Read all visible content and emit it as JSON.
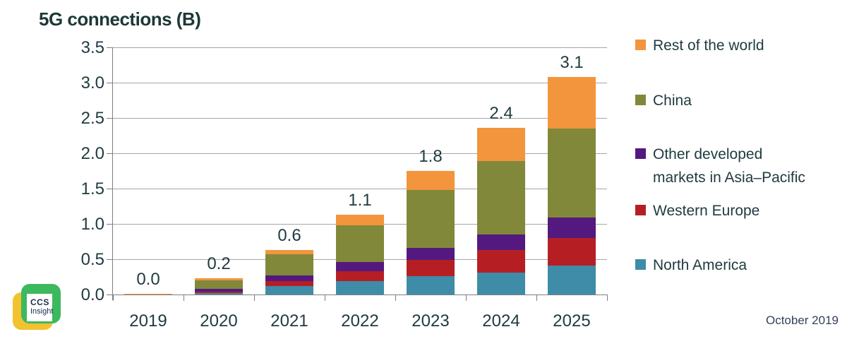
{
  "title": "5G connections (B)",
  "footer": {
    "date_note": "October 2019"
  },
  "logo": {
    "line1": "CCS",
    "line2": "Insight"
  },
  "chart_data": {
    "type": "bar",
    "subtype": "stacked",
    "title": "5G connections (B)",
    "categories": [
      "2019",
      "2020",
      "2021",
      "2022",
      "2023",
      "2024",
      "2025"
    ],
    "series": [
      {
        "name": "North America",
        "color": "#3e8ca8",
        "values": [
          0.0,
          0.02,
          0.12,
          0.19,
          0.26,
          0.31,
          0.41
        ]
      },
      {
        "name": "Western Europe",
        "color": "#b51f24",
        "values": [
          0.0,
          0.02,
          0.07,
          0.14,
          0.23,
          0.32,
          0.39
        ]
      },
      {
        "name": "Other developed markets in Asia–Pacific",
        "color": "#54197f",
        "values": [
          0.0,
          0.04,
          0.08,
          0.13,
          0.17,
          0.22,
          0.29
        ]
      },
      {
        "name": "China",
        "color": "#82883a",
        "values": [
          0.0,
          0.12,
          0.3,
          0.52,
          0.82,
          1.04,
          1.26
        ]
      },
      {
        "name": "Rest of the world",
        "color": "#f2953d",
        "values": [
          0.01,
          0.03,
          0.06,
          0.15,
          0.27,
          0.47,
          0.73
        ]
      }
    ],
    "total_labels": [
      "0.0",
      "0.2",
      "0.6",
      "1.1",
      "1.8",
      "2.4",
      "3.1"
    ],
    "ylim": [
      0,
      3.5
    ],
    "ytick_step": 0.5,
    "ytick_labels": [
      "3.5",
      "3.0",
      "2.5",
      "2.0",
      "1.5",
      "1.0",
      "0.5",
      "0.0"
    ],
    "grid": true,
    "legend_position": "right"
  },
  "legend": {
    "items": [
      {
        "label": "Rest of the world",
        "color": "#f2953d"
      },
      {
        "label": "China",
        "color": "#82883a"
      },
      {
        "label": "Other developed\nmarkets in Asia–Pacific",
        "color": "#54197f"
      },
      {
        "label": "Western Europe",
        "color": "#b51f24"
      },
      {
        "label": "North America",
        "color": "#3e8ca8"
      }
    ]
  }
}
